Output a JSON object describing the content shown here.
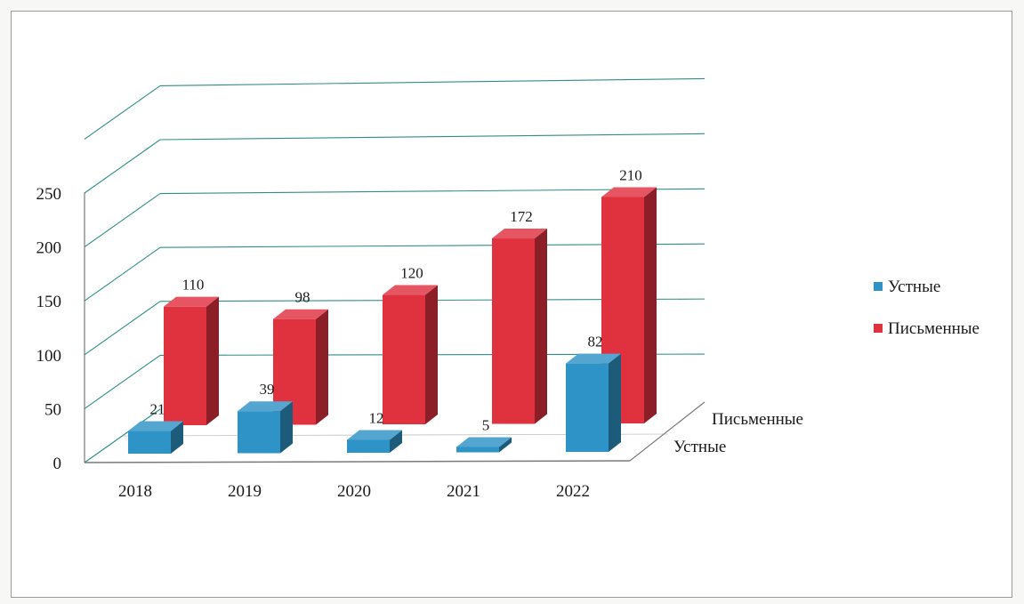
{
  "chart_data": {
    "type": "bar",
    "subtype": "3d-clustered-depth",
    "categories": [
      "2018",
      "2019",
      "2020",
      "2021",
      "2022"
    ],
    "series": [
      {
        "name": "Устные",
        "values": [
          21,
          39,
          12,
          5,
          82
        ],
        "color": "#2e93c7",
        "data_labels": [
          "21",
          "39",
          "12",
          "5",
          "82"
        ]
      },
      {
        "name": "Письменные",
        "values": [
          110,
          98,
          120,
          172,
          210
        ],
        "color": "#e0313f",
        "data_labels": [
          "110",
          "98",
          "120",
          "172",
          "210"
        ]
      }
    ],
    "ylim": [
      0,
      300
    ],
    "yticks": [
      "0",
      "50",
      "100",
      "150",
      "200",
      "250"
    ],
    "depth_labels": [
      "Письменные",
      "Устные"
    ],
    "legend": {
      "position": "right",
      "items": [
        "Устные",
        "Письменные"
      ]
    },
    "grid": true,
    "title": "",
    "xlabel": "",
    "ylabel": ""
  }
}
